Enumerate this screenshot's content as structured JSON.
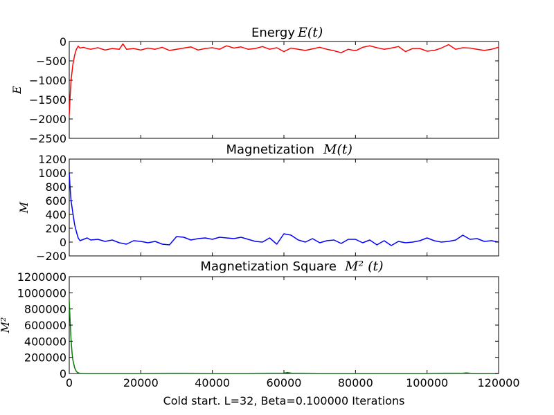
{
  "chart_data": [
    {
      "type": "line",
      "title": "Energy",
      "title_math": "E(t)",
      "ylabel": "E",
      "xlim": [
        0,
        120000
      ],
      "ylim": [
        -2500,
        0
      ],
      "yticks": [
        "0",
        "−500",
        "−1000",
        "−1500",
        "−2000",
        "−2500"
      ],
      "ytick_values": [
        0,
        -500,
        -1000,
        -1500,
        -2000,
        -2500
      ],
      "show_xtick_labels": false,
      "series": [
        {
          "color": "#ff0000",
          "x": [
            0,
            200,
            500,
            1000,
            1500,
            2000,
            2500,
            3000,
            4000,
            5000,
            6000,
            8000,
            10000,
            12000,
            14000,
            15000,
            16000,
            18000,
            20000,
            22000,
            24000,
            26000,
            28000,
            30000,
            32000,
            34000,
            36000,
            38000,
            40000,
            42000,
            44000,
            46000,
            48000,
            50000,
            52000,
            54000,
            56000,
            58000,
            60000,
            62000,
            64000,
            66000,
            68000,
            70000,
            72000,
            74000,
            76000,
            78000,
            80000,
            82000,
            84000,
            86000,
            88000,
            90000,
            92000,
            94000,
            96000,
            98000,
            100000,
            102000,
            104000,
            106000,
            108000,
            110000,
            112000,
            114000,
            116000,
            118000,
            120000
          ],
          "y": [
            -1900,
            -1500,
            -1000,
            -600,
            -350,
            -200,
            -120,
            -170,
            -150,
            -180,
            -200,
            -160,
            -220,
            -180,
            -200,
            -60,
            -200,
            -180,
            -220,
            -170,
            -200,
            -150,
            -230,
            -200,
            -170,
            -140,
            -220,
            -180,
            -160,
            -200,
            -110,
            -170,
            -140,
            -200,
            -180,
            -130,
            -200,
            -160,
            -260,
            -170,
            -200,
            -230,
            -190,
            -150,
            -200,
            -240,
            -290,
            -200,
            -240,
            -150,
            -110,
            -160,
            -200,
            -170,
            -130,
            -260,
            -180,
            -180,
            -250,
            -230,
            -170,
            -80,
            -200,
            -160,
            -170,
            -200,
            -230,
            -200,
            -150
          ]
        }
      ]
    },
    {
      "type": "line",
      "title": "Magnetization",
      "title_math": "M(t)",
      "ylabel": "M",
      "xlim": [
        0,
        120000
      ],
      "ylim": [
        -200,
        1200
      ],
      "yticks": [
        "1200",
        "1000",
        "800",
        "600",
        "400",
        "200",
        "0",
        "−200"
      ],
      "ytick_values": [
        1200,
        1000,
        800,
        600,
        400,
        200,
        0,
        -200
      ],
      "show_xtick_labels": false,
      "series": [
        {
          "color": "#0000ff",
          "x": [
            0,
            200,
            500,
            1000,
            1500,
            2000,
            2500,
            3000,
            4000,
            5000,
            6000,
            8000,
            10000,
            12000,
            14000,
            16000,
            18000,
            20000,
            22000,
            24000,
            26000,
            28000,
            30000,
            32000,
            34000,
            36000,
            38000,
            40000,
            42000,
            44000,
            46000,
            48000,
            50000,
            52000,
            54000,
            56000,
            58000,
            60000,
            62000,
            64000,
            66000,
            68000,
            70000,
            72000,
            74000,
            76000,
            78000,
            80000,
            82000,
            84000,
            86000,
            88000,
            90000,
            92000,
            94000,
            96000,
            98000,
            100000,
            102000,
            104000,
            106000,
            108000,
            110000,
            112000,
            114000,
            116000,
            118000,
            120000
          ],
          "y": [
            1000,
            820,
            600,
            420,
            250,
            150,
            60,
            20,
            40,
            60,
            30,
            40,
            10,
            30,
            -10,
            -30,
            20,
            10,
            -10,
            10,
            -30,
            -40,
            80,
            70,
            30,
            50,
            60,
            40,
            70,
            60,
            50,
            70,
            40,
            10,
            0,
            60,
            -30,
            120,
            100,
            30,
            0,
            50,
            -10,
            20,
            30,
            -20,
            40,
            40,
            -10,
            30,
            -40,
            20,
            -50,
            10,
            -10,
            0,
            20,
            60,
            20,
            0,
            10,
            30,
            100,
            40,
            50,
            10,
            20,
            0
          ]
        }
      ]
    },
    {
      "type": "line",
      "title": "Magnetization Square",
      "title_math": "M² (t)",
      "ylabel": "M²",
      "xlim": [
        0,
        120000
      ],
      "ylim": [
        0,
        1200000
      ],
      "yticks": [
        "1200000",
        "1000000",
        "800000",
        "600000",
        "400000",
        "200000",
        "0"
      ],
      "ytick_values": [
        1200000,
        1000000,
        800000,
        600000,
        400000,
        200000,
        0
      ],
      "show_xtick_labels": true,
      "xticks": [
        "0",
        "20000",
        "40000",
        "60000",
        "80000",
        "100000",
        "120000"
      ],
      "xtick_values": [
        0,
        20000,
        40000,
        60000,
        80000,
        100000,
        120000
      ],
      "xlabel": "Cold start. L=32, Beta=0.100000 Iterations",
      "series": [
        {
          "color": "#008000",
          "x": [
            0,
            200,
            500,
            800,
            1000,
            1500,
            2000,
            2500,
            3000,
            4000,
            5000,
            6000,
            10000,
            20000,
            30000,
            40000,
            50000,
            60000,
            61000,
            62000,
            70000,
            80000,
            90000,
            100000,
            110000,
            111000,
            112000,
            120000
          ],
          "y": [
            900000,
            700000,
            420000,
            250000,
            170000,
            70000,
            25000,
            8000,
            3000,
            2500,
            1500,
            2000,
            1500,
            2000,
            3000,
            2500,
            2500,
            4000,
            12000,
            4000,
            2500,
            2000,
            1500,
            2500,
            3000,
            8000,
            3000,
            2000
          ]
        }
      ]
    }
  ]
}
